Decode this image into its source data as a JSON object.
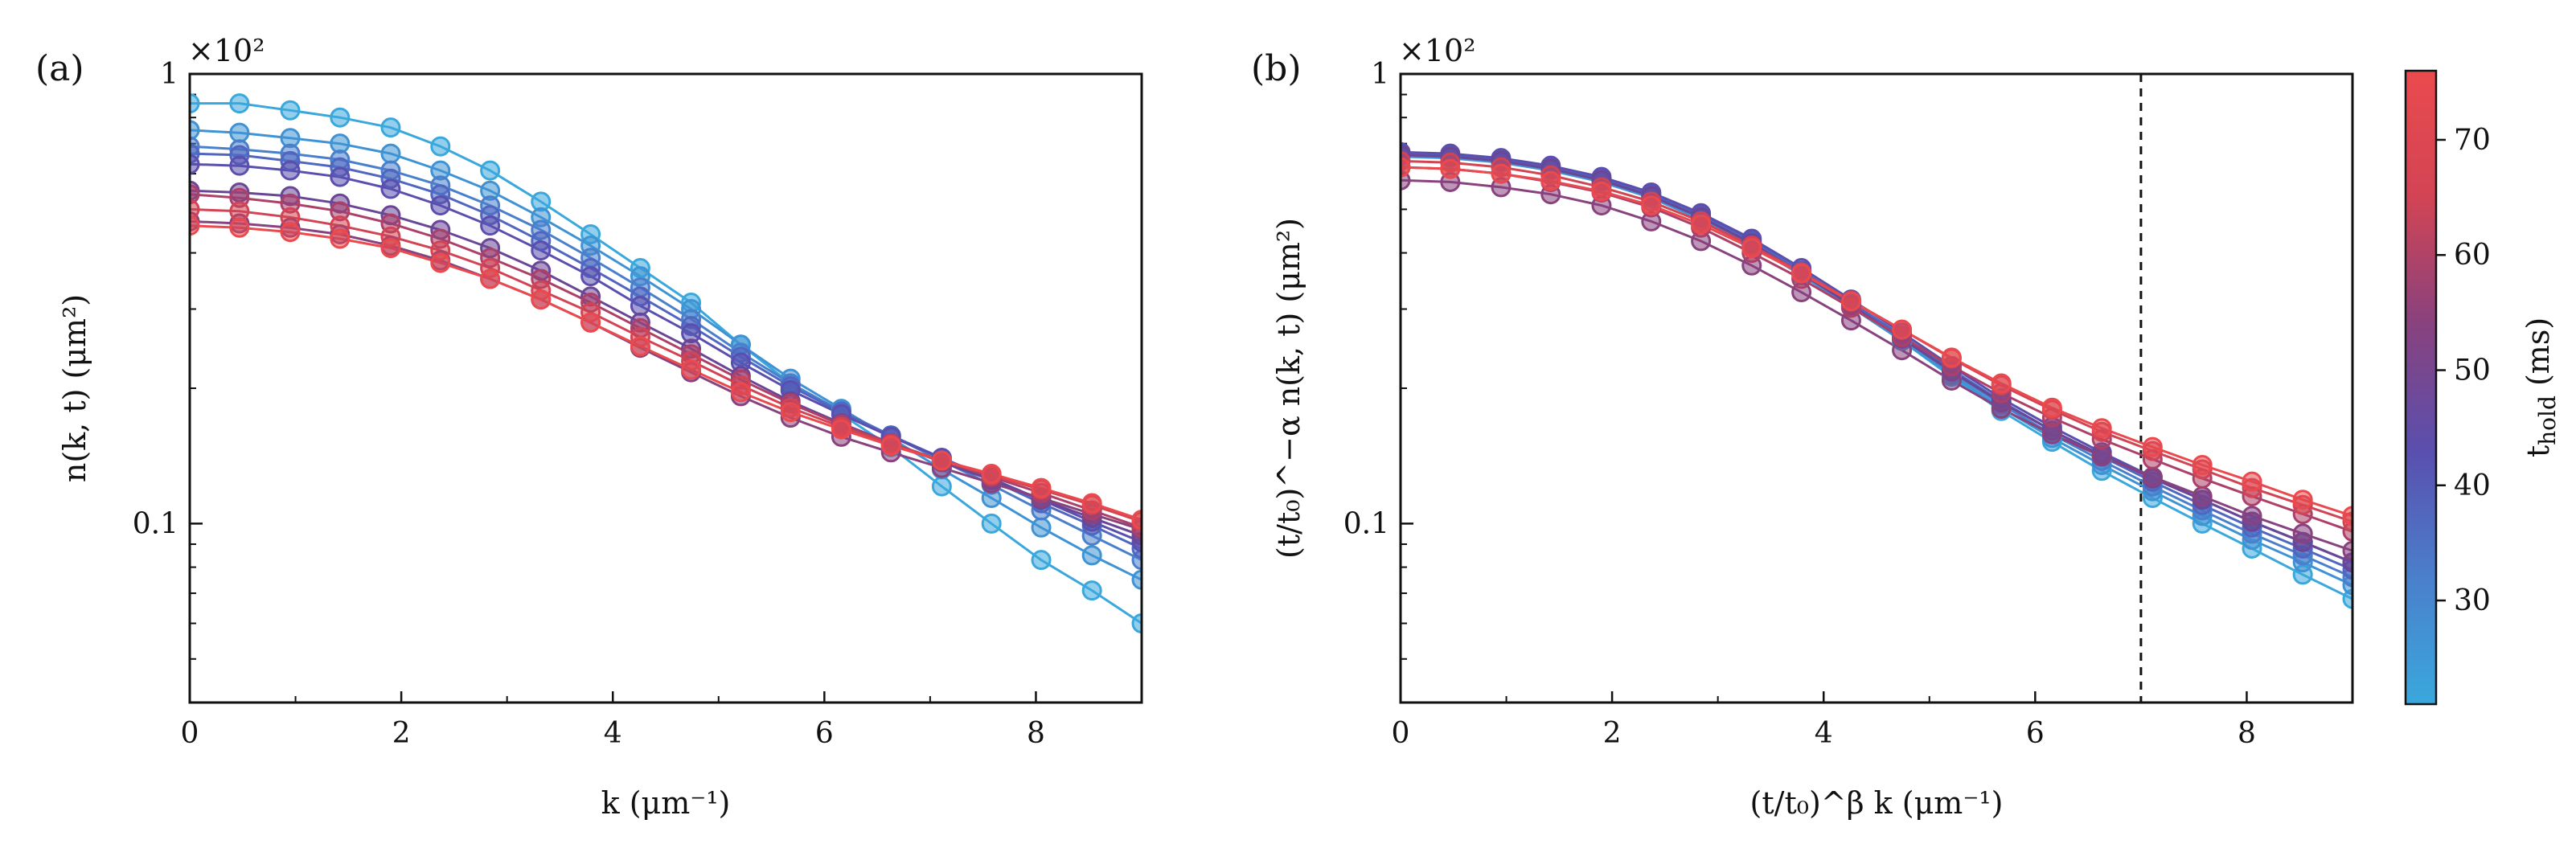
{
  "chart_data": [
    {
      "id": "a",
      "type": "line",
      "panel_label": "(a)",
      "title": "",
      "xlabel": "k (μm⁻¹)",
      "ylabel": "n(k, t) (μm²)",
      "y_scale": "log",
      "multiplier_label": "×10²",
      "xlim": [
        0,
        9
      ],
      "ylim": [
        0.04,
        1.0
      ],
      "x_ticks": [
        0,
        2,
        4,
        6,
        8
      ],
      "x_tick_labels": [
        "0",
        "2",
        "4",
        "6",
        "8"
      ],
      "y_tick_labels": [
        {
          "value": 1,
          "label": "1"
        },
        {
          "value": 0.1,
          "label": "0.1"
        }
      ],
      "grid": false,
      "legend": "none",
      "colorbar": "tHold",
      "series": [
        {
          "t_hold": 21,
          "color": "#3aa8dc",
          "x": [
            0,
            0.47,
            0.95,
            1.42,
            1.9,
            2.37,
            2.84,
            3.32,
            3.79,
            4.26,
            4.74,
            5.21,
            5.68,
            6.16,
            6.63,
            7.11,
            7.58,
            8.05,
            8.53,
            9.0
          ],
          "y": [
            0.86,
            0.86,
            0.83,
            0.8,
            0.76,
            0.69,
            0.61,
            0.52,
            0.44,
            0.37,
            0.31,
            0.25,
            0.205,
            0.175,
            0.148,
            0.121,
            0.1,
            0.083,
            0.071,
            0.06
          ]
        },
        {
          "t_hold": 27,
          "color": "#3f93d4",
          "x": [
            0,
            0.47,
            0.95,
            1.42,
            1.9,
            2.37,
            2.84,
            3.32,
            3.79,
            4.26,
            4.74,
            5.21,
            5.68,
            6.16,
            6.63,
            7.11,
            7.58,
            8.05,
            8.53,
            9.0
          ],
          "y": [
            0.75,
            0.74,
            0.72,
            0.7,
            0.665,
            0.61,
            0.55,
            0.48,
            0.415,
            0.355,
            0.3,
            0.25,
            0.21,
            0.18,
            0.155,
            0.132,
            0.114,
            0.098,
            0.085,
            0.075
          ]
        },
        {
          "t_hold": 33,
          "color": "#4a7fcc",
          "x": [
            0,
            0.47,
            0.95,
            1.42,
            1.9,
            2.37,
            2.84,
            3.32,
            3.79,
            4.26,
            4.74,
            5.21,
            5.68,
            6.16,
            6.63,
            7.11,
            7.58,
            8.05,
            8.53,
            9.0
          ],
          "y": [
            0.69,
            0.68,
            0.665,
            0.645,
            0.61,
            0.565,
            0.51,
            0.45,
            0.39,
            0.335,
            0.285,
            0.24,
            0.205,
            0.178,
            0.157,
            0.138,
            0.122,
            0.107,
            0.094,
            0.083
          ]
        },
        {
          "t_hold": 39,
          "color": "#5066c0",
          "x": [
            0,
            0.47,
            0.95,
            1.42,
            1.9,
            2.37,
            2.84,
            3.32,
            3.79,
            4.26,
            4.74,
            5.21,
            5.68,
            6.16,
            6.63,
            7.11,
            7.58,
            8.05,
            8.53,
            9.0
          ],
          "y": [
            0.665,
            0.66,
            0.64,
            0.62,
            0.585,
            0.54,
            0.485,
            0.425,
            0.37,
            0.32,
            0.275,
            0.235,
            0.202,
            0.177,
            0.157,
            0.14,
            0.125,
            0.111,
            0.099,
            0.088
          ]
        },
        {
          "t_hold": 45,
          "color": "#5a4fae",
          "x": [
            0,
            0.47,
            0.95,
            1.42,
            1.9,
            2.37,
            2.84,
            3.32,
            3.79,
            4.26,
            4.74,
            5.21,
            5.68,
            6.16,
            6.63,
            7.11,
            7.58,
            8.05,
            8.53,
            9.0
          ],
          "y": [
            0.63,
            0.625,
            0.61,
            0.59,
            0.555,
            0.51,
            0.46,
            0.405,
            0.355,
            0.305,
            0.265,
            0.228,
            0.198,
            0.175,
            0.156,
            0.14,
            0.126,
            0.113,
            0.101,
            0.091
          ]
        },
        {
          "t_hold": 51,
          "color": "#6a4696",
          "x": [
            0,
            0.47,
            0.95,
            1.42,
            1.9,
            2.37,
            2.84,
            3.32,
            3.79,
            4.26,
            4.74,
            5.21,
            5.68,
            6.16,
            6.63,
            7.11,
            7.58,
            8.05,
            8.53,
            9.0
          ],
          "y": [
            0.55,
            0.545,
            0.535,
            0.515,
            0.485,
            0.45,
            0.41,
            0.365,
            0.32,
            0.28,
            0.245,
            0.213,
            0.187,
            0.167,
            0.151,
            0.137,
            0.125,
            0.113,
            0.103,
            0.094
          ]
        },
        {
          "t_hold": 57,
          "color": "#88427e",
          "x": [
            0,
            0.47,
            0.95,
            1.42,
            1.9,
            2.37,
            2.84,
            3.32,
            3.79,
            4.26,
            4.74,
            5.21,
            5.68,
            6.16,
            6.63,
            7.11,
            7.58,
            8.05,
            8.53,
            9.0
          ],
          "y": [
            0.47,
            0.465,
            0.455,
            0.44,
            0.415,
            0.385,
            0.35,
            0.315,
            0.28,
            0.246,
            0.217,
            0.192,
            0.172,
            0.156,
            0.144,
            0.133,
            0.123,
            0.114,
            0.105,
            0.097
          ]
        },
        {
          "t_hold": 63,
          "color": "#ad4068",
          "x": [
            0,
            0.47,
            0.95,
            1.42,
            1.9,
            2.37,
            2.84,
            3.32,
            3.79,
            4.26,
            4.74,
            5.21,
            5.68,
            6.16,
            6.63,
            7.11,
            7.58,
            8.05,
            8.53,
            9.0
          ],
          "y": [
            0.54,
            0.53,
            0.515,
            0.495,
            0.465,
            0.43,
            0.39,
            0.35,
            0.31,
            0.272,
            0.238,
            0.209,
            0.185,
            0.166,
            0.151,
            0.138,
            0.127,
            0.117,
            0.107,
            0.098
          ]
        },
        {
          "t_hold": 69,
          "color": "#d24454",
          "x": [
            0,
            0.47,
            0.95,
            1.42,
            1.9,
            2.37,
            2.84,
            3.32,
            3.79,
            4.26,
            4.74,
            5.21,
            5.68,
            6.16,
            6.63,
            7.11,
            7.58,
            8.05,
            8.53,
            9.0
          ],
          "y": [
            0.5,
            0.495,
            0.48,
            0.46,
            0.435,
            0.405,
            0.37,
            0.33,
            0.295,
            0.26,
            0.23,
            0.203,
            0.181,
            0.164,
            0.15,
            0.138,
            0.128,
            0.119,
            0.11,
            0.101
          ]
        },
        {
          "t_hold": 75,
          "color": "#ea4a4e",
          "x": [
            0,
            0.47,
            0.95,
            1.42,
            1.9,
            2.37,
            2.84,
            3.32,
            3.79,
            4.26,
            4.74,
            5.21,
            5.68,
            6.16,
            6.63,
            7.11,
            7.58,
            8.05,
            8.53,
            9.0
          ],
          "y": [
            0.46,
            0.455,
            0.445,
            0.43,
            0.41,
            0.38,
            0.35,
            0.315,
            0.28,
            0.248,
            0.22,
            0.196,
            0.177,
            0.162,
            0.149,
            0.138,
            0.129,
            0.12,
            0.111,
            0.102
          ]
        }
      ]
    },
    {
      "id": "b",
      "type": "line",
      "panel_label": "(b)",
      "title": "",
      "xlabel": "(t/t₀)^β k (μm⁻¹)",
      "ylabel": "(t/t₀)^−α n(k, t) (μm²)",
      "y_scale": "log",
      "multiplier_label": "×10²",
      "xlim": [
        0,
        9
      ],
      "ylim": [
        0.04,
        1.0
      ],
      "x_ticks": [
        0,
        2,
        4,
        6,
        8
      ],
      "x_tick_labels": [
        "0",
        "2",
        "4",
        "6",
        "8"
      ],
      "y_tick_labels": [
        {
          "value": 1,
          "label": "1"
        },
        {
          "value": 0.1,
          "label": "0.1"
        }
      ],
      "grid": false,
      "legend": "none",
      "vline_x": 7,
      "series": [
        {
          "t_hold": 21,
          "color": "#3aa8dc",
          "x": [
            0,
            0.47,
            0.95,
            1.42,
            1.9,
            2.37,
            2.84,
            3.32,
            3.79,
            4.26,
            4.74,
            5.21,
            5.68,
            6.16,
            6.63,
            7.11,
            7.58,
            8.05,
            8.53,
            9.0
          ],
          "y": [
            0.66,
            0.655,
            0.64,
            0.615,
            0.58,
            0.535,
            0.48,
            0.42,
            0.36,
            0.305,
            0.255,
            0.212,
            0.178,
            0.152,
            0.131,
            0.114,
            0.1,
            0.088,
            0.077,
            0.068
          ]
        },
        {
          "t_hold": 27,
          "color": "#3f93d4",
          "x": [
            0,
            0.47,
            0.95,
            1.42,
            1.9,
            2.37,
            2.84,
            3.32,
            3.79,
            4.26,
            4.74,
            5.21,
            5.68,
            6.16,
            6.63,
            7.11,
            7.58,
            8.05,
            8.53,
            9.0
          ],
          "y": [
            0.655,
            0.65,
            0.635,
            0.61,
            0.575,
            0.53,
            0.475,
            0.415,
            0.357,
            0.303,
            0.255,
            0.214,
            0.181,
            0.155,
            0.135,
            0.118,
            0.104,
            0.092,
            0.082,
            0.073
          ]
        },
        {
          "t_hold": 33,
          "color": "#4a7fcc",
          "x": [
            0,
            0.47,
            0.95,
            1.42,
            1.9,
            2.37,
            2.84,
            3.32,
            3.79,
            4.26,
            4.74,
            5.21,
            5.68,
            6.16,
            6.63,
            7.11,
            7.58,
            8.05,
            8.53,
            9.0
          ],
          "y": [
            0.66,
            0.655,
            0.64,
            0.615,
            0.58,
            0.535,
            0.48,
            0.42,
            0.36,
            0.306,
            0.258,
            0.217,
            0.184,
            0.158,
            0.138,
            0.121,
            0.107,
            0.095,
            0.085,
            0.076
          ]
        },
        {
          "t_hold": 39,
          "color": "#5066c0",
          "x": [
            0,
            0.47,
            0.95,
            1.42,
            1.9,
            2.37,
            2.84,
            3.32,
            3.79,
            4.26,
            4.74,
            5.21,
            5.68,
            6.16,
            6.63,
            7.11,
            7.58,
            8.05,
            8.53,
            9.0
          ],
          "y": [
            0.665,
            0.66,
            0.645,
            0.62,
            0.585,
            0.54,
            0.485,
            0.425,
            0.365,
            0.31,
            0.262,
            0.22,
            0.187,
            0.161,
            0.141,
            0.124,
            0.11,
            0.098,
            0.088,
            0.079
          ]
        },
        {
          "t_hold": 45,
          "color": "#5a4fae",
          "x": [
            0,
            0.47,
            0.95,
            1.42,
            1.9,
            2.37,
            2.84,
            3.32,
            3.79,
            4.26,
            4.74,
            5.21,
            5.68,
            6.16,
            6.63,
            7.11,
            7.58,
            8.05,
            8.53,
            9.0
          ],
          "y": [
            0.67,
            0.665,
            0.65,
            0.625,
            0.59,
            0.545,
            0.49,
            0.43,
            0.37,
            0.315,
            0.266,
            0.224,
            0.19,
            0.164,
            0.144,
            0.127,
            0.113,
            0.101,
            0.091,
            0.082
          ]
        },
        {
          "t_hold": 51,
          "color": "#6a4696",
          "x": [
            0,
            0.47,
            0.95,
            1.42,
            1.9,
            2.37,
            2.84,
            3.32,
            3.79,
            4.26,
            4.74,
            5.21,
            5.68,
            6.16,
            6.63,
            7.11,
            7.58,
            8.05,
            8.53,
            9.0
          ],
          "y": [
            0.66,
            0.655,
            0.64,
            0.615,
            0.58,
            0.535,
            0.48,
            0.42,
            0.36,
            0.306,
            0.258,
            0.218,
            0.186,
            0.161,
            0.142,
            0.126,
            0.113,
            0.101,
            0.091,
            0.082
          ]
        },
        {
          "t_hold": 57,
          "color": "#88427e",
          "x": [
            0,
            0.47,
            0.95,
            1.42,
            1.9,
            2.37,
            2.84,
            3.32,
            3.79,
            4.26,
            4.74,
            5.21,
            5.68,
            6.16,
            6.63,
            7.11,
            7.58,
            8.05,
            8.53,
            9.0
          ],
          "y": [
            0.58,
            0.575,
            0.56,
            0.54,
            0.51,
            0.47,
            0.425,
            0.375,
            0.327,
            0.283,
            0.243,
            0.208,
            0.18,
            0.158,
            0.141,
            0.127,
            0.115,
            0.104,
            0.095,
            0.087
          ]
        },
        {
          "t_hold": 63,
          "color": "#ad4068",
          "x": [
            0,
            0.47,
            0.95,
            1.42,
            1.9,
            2.37,
            2.84,
            3.32,
            3.79,
            4.26,
            4.74,
            5.21,
            5.68,
            6.16,
            6.63,
            7.11,
            7.58,
            8.05,
            8.53,
            9.0
          ],
          "y": [
            0.62,
            0.615,
            0.6,
            0.575,
            0.545,
            0.505,
            0.455,
            0.4,
            0.35,
            0.302,
            0.26,
            0.224,
            0.195,
            0.172,
            0.154,
            0.139,
            0.126,
            0.115,
            0.105,
            0.096
          ]
        },
        {
          "t_hold": 69,
          "color": "#d24454",
          "x": [
            0,
            0.47,
            0.95,
            1.42,
            1.9,
            2.37,
            2.84,
            3.32,
            3.79,
            4.26,
            4.74,
            5.21,
            5.68,
            6.16,
            6.63,
            7.11,
            7.58,
            8.05,
            8.53,
            9.0
          ],
          "y": [
            0.64,
            0.635,
            0.62,
            0.595,
            0.56,
            0.52,
            0.47,
            0.415,
            0.362,
            0.313,
            0.27,
            0.233,
            0.203,
            0.179,
            0.16,
            0.145,
            0.132,
            0.12,
            0.11,
            0.101
          ]
        },
        {
          "t_hold": 75,
          "color": "#ea4a4e",
          "x": [
            0,
            0.47,
            0.95,
            1.42,
            1.9,
            2.37,
            2.84,
            3.32,
            3.79,
            4.26,
            4.74,
            5.21,
            5.68,
            6.16,
            6.63,
            7.11,
            7.58,
            8.05,
            8.53,
            9.0
          ],
          "y": [
            0.62,
            0.615,
            0.6,
            0.578,
            0.548,
            0.51,
            0.463,
            0.41,
            0.36,
            0.312,
            0.27,
            0.234,
            0.205,
            0.181,
            0.163,
            0.148,
            0.135,
            0.124,
            0.113,
            0.104
          ]
        }
      ]
    }
  ],
  "colorbar": {
    "label": "t_hold (ms)",
    "label_main": "t",
    "label_sub": "hold",
    "label_unit": " (ms)",
    "min": 21,
    "max": 76,
    "ticks": [
      30,
      40,
      50,
      60,
      70
    ],
    "tick_labels": [
      "30",
      "40",
      "50",
      "60",
      "70"
    ],
    "colors": [
      "#3aa8dc",
      "#4a7fcc",
      "#5a4fae",
      "#88427e",
      "#d24454",
      "#ea4a4e"
    ]
  }
}
